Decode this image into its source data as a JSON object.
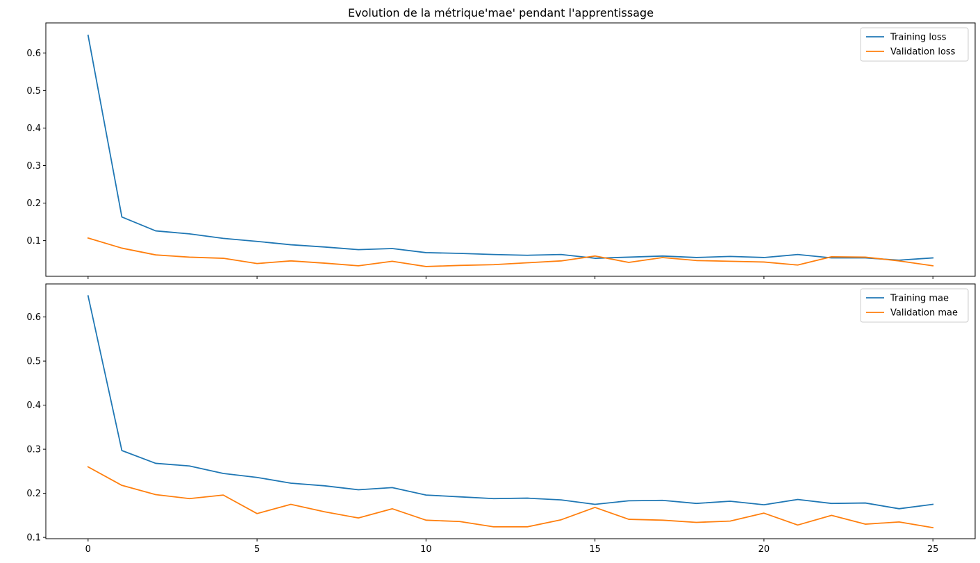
{
  "chart_data": [
    {
      "type": "line",
      "title": "Evolution de la métrique'mae' pendant l'apprentissage",
      "xlabel": "",
      "ylabel": "",
      "xlim": [
        -1.25,
        26.25
      ],
      "ylim": [
        0.005,
        0.68
      ],
      "xticks": [
        0,
        5,
        10,
        15,
        20,
        25
      ],
      "xtick_labels_visible": false,
      "yticks": [
        0.1,
        0.2,
        0.3,
        0.4,
        0.5,
        0.6
      ],
      "grid": false,
      "legend_position": "top-right",
      "series": [
        {
          "name": "Training loss",
          "color": "#1f77b4",
          "x": [
            0,
            1,
            2,
            3,
            4,
            5,
            6,
            7,
            8,
            9,
            10,
            11,
            12,
            13,
            14,
            15,
            16,
            17,
            18,
            19,
            20,
            21,
            22,
            23,
            24,
            25
          ],
          "y": [
            0.647,
            0.163,
            0.126,
            0.118,
            0.106,
            0.098,
            0.089,
            0.083,
            0.076,
            0.079,
            0.068,
            0.066,
            0.063,
            0.061,
            0.063,
            0.053,
            0.056,
            0.059,
            0.055,
            0.058,
            0.055,
            0.063,
            0.054,
            0.054,
            0.048,
            0.054
          ]
        },
        {
          "name": "Validation loss",
          "color": "#ff7f0e",
          "x": [
            0,
            1,
            2,
            3,
            4,
            5,
            6,
            7,
            8,
            9,
            10,
            11,
            12,
            13,
            14,
            15,
            16,
            17,
            18,
            19,
            20,
            21,
            22,
            23,
            24,
            25
          ],
          "y": [
            0.107,
            0.08,
            0.062,
            0.056,
            0.053,
            0.039,
            0.046,
            0.04,
            0.033,
            0.045,
            0.031,
            0.034,
            0.036,
            0.041,
            0.046,
            0.059,
            0.042,
            0.055,
            0.047,
            0.045,
            0.043,
            0.035,
            0.057,
            0.056,
            0.046,
            0.033
          ]
        }
      ]
    },
    {
      "type": "line",
      "title": "",
      "xlabel": "",
      "ylabel": "",
      "xlim": [
        -1.25,
        26.25
      ],
      "ylim": [
        0.097,
        0.675
      ],
      "xticks": [
        0,
        5,
        10,
        15,
        20,
        25
      ],
      "yticks": [
        0.1,
        0.2,
        0.3,
        0.4,
        0.5,
        0.6
      ],
      "grid": false,
      "legend_position": "top-right",
      "series": [
        {
          "name": "Training mae",
          "color": "#1f77b4",
          "x": [
            0,
            1,
            2,
            3,
            4,
            5,
            6,
            7,
            8,
            9,
            10,
            11,
            12,
            13,
            14,
            15,
            16,
            17,
            18,
            19,
            20,
            21,
            22,
            23,
            24,
            25
          ],
          "y": [
            0.648,
            0.297,
            0.268,
            0.262,
            0.245,
            0.236,
            0.223,
            0.217,
            0.208,
            0.213,
            0.196,
            0.192,
            0.188,
            0.189,
            0.185,
            0.175,
            0.183,
            0.184,
            0.177,
            0.182,
            0.174,
            0.186,
            0.177,
            0.178,
            0.165,
            0.175
          ]
        },
        {
          "name": "Validation mae",
          "color": "#ff7f0e",
          "x": [
            0,
            1,
            2,
            3,
            4,
            5,
            6,
            7,
            8,
            9,
            10,
            11,
            12,
            13,
            14,
            15,
            16,
            17,
            18,
            19,
            20,
            21,
            22,
            23,
            24,
            25
          ],
          "y": [
            0.26,
            0.218,
            0.197,
            0.188,
            0.196,
            0.154,
            0.175,
            0.158,
            0.144,
            0.165,
            0.139,
            0.136,
            0.124,
            0.124,
            0.14,
            0.168,
            0.141,
            0.139,
            0.134,
            0.137,
            0.155,
            0.128,
            0.15,
            0.13,
            0.135,
            0.122
          ]
        }
      ]
    }
  ]
}
